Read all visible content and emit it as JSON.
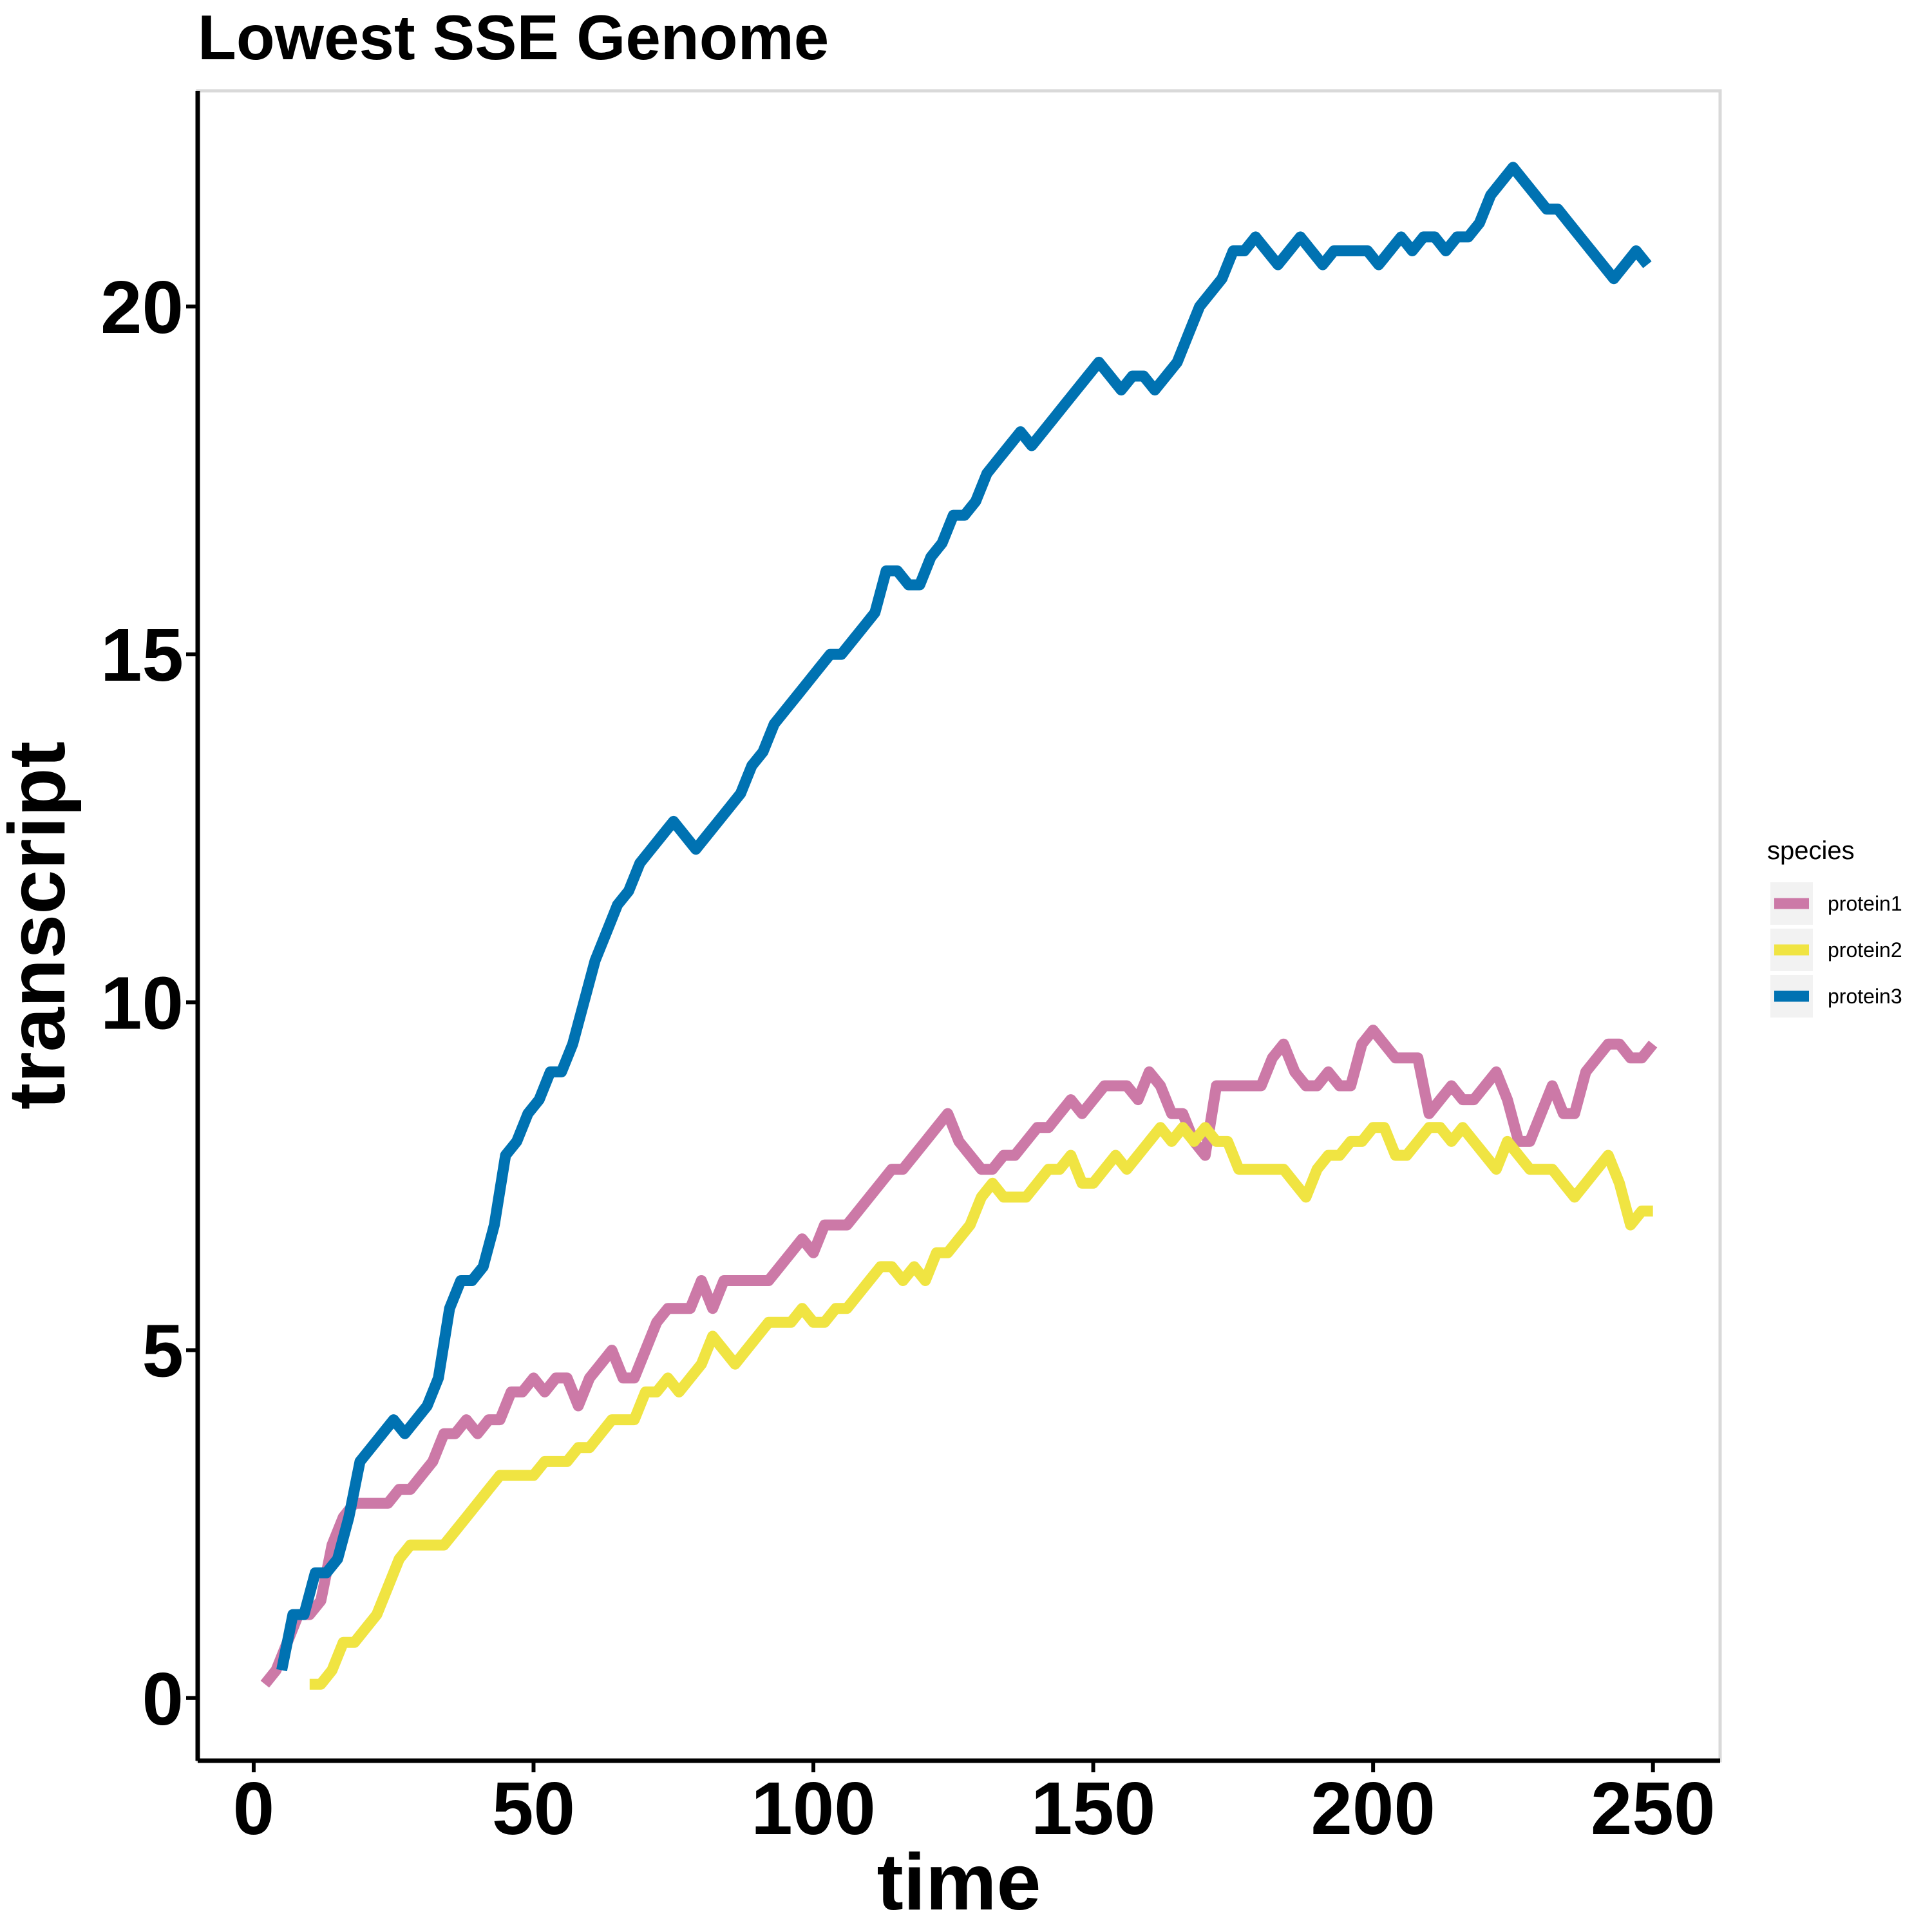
{
  "chart_data": {
    "type": "line",
    "title": "Lowest SSE Genome",
    "xlabel": "time",
    "ylabel": "transcript",
    "xlim": [
      -10,
      262
    ],
    "ylim": [
      -0.9,
      23.1
    ],
    "x_ticks": [
      0,
      50,
      100,
      150,
      200,
      250
    ],
    "x_tick_labels": [
      "0",
      "50",
      "100",
      "150",
      "200",
      "250"
    ],
    "y_ticks": [
      0,
      5,
      10,
      15,
      20
    ],
    "y_tick_labels": [
      "0",
      "5",
      "10",
      "15",
      "20"
    ],
    "grid": false,
    "legend": {
      "title": "species",
      "position": "right"
    },
    "series": [
      {
        "name": "protein1",
        "color": "#CC79A7",
        "x": [
          2,
          4,
          6,
          8,
          10,
          12,
          14,
          16,
          18,
          20,
          24,
          26,
          28,
          30,
          32,
          34,
          36,
          38,
          40,
          42,
          44,
          46,
          48,
          50,
          52,
          54,
          56,
          58,
          60,
          62,
          64,
          66,
          68,
          70,
          72,
          74,
          78,
          80,
          82,
          84,
          88,
          92,
          96,
          98,
          100,
          102,
          104,
          106,
          108,
          110,
          112,
          114,
          116,
          118,
          120,
          122,
          124,
          126,
          128,
          130,
          132,
          134,
          136,
          138,
          140,
          142,
          144,
          146,
          148,
          150,
          152,
          154,
          156,
          158,
          160,
          162,
          164,
          166,
          168,
          170,
          172,
          176,
          180,
          182,
          184,
          186,
          188,
          190,
          192,
          194,
          196,
          198,
          200,
          202,
          204,
          206,
          208,
          210,
          212,
          214,
          216,
          218,
          220,
          222,
          224,
          226,
          228,
          230,
          232,
          234,
          236,
          238,
          240,
          242,
          244,
          246,
          248,
          250
        ],
        "values": [
          0.2,
          0.4,
          0.8,
          1.2,
          1.2,
          1.4,
          2.2,
          2.6,
          2.8,
          2.8,
          2.8,
          3.0,
          3.0,
          3.2,
          3.4,
          3.8,
          3.8,
          4.0,
          3.8,
          4.0,
          4.0,
          4.4,
          4.4,
          4.6,
          4.4,
          4.6,
          4.6,
          4.2,
          4.6,
          4.8,
          5.0,
          4.6,
          4.6,
          5.0,
          5.4,
          5.6,
          5.6,
          6.0,
          5.6,
          6.0,
          6.0,
          6.0,
          6.4,
          6.6,
          6.4,
          6.8,
          6.8,
          6.8,
          7.0,
          7.2,
          7.4,
          7.6,
          7.6,
          7.8,
          8.0,
          8.2,
          8.4,
          8.0,
          7.8,
          7.6,
          7.6,
          7.8,
          7.8,
          8.0,
          8.2,
          8.2,
          8.4,
          8.6,
          8.4,
          8.6,
          8.8,
          8.8,
          8.8,
          8.6,
          9.0,
          8.8,
          8.4,
          8.4,
          8.0,
          7.8,
          8.8,
          8.8,
          8.8,
          9.2,
          9.4,
          9.0,
          8.8,
          8.8,
          9.0,
          8.8,
          8.8,
          9.4,
          9.6,
          9.4,
          9.2,
          9.2,
          9.2,
          8.4,
          8.6,
          8.8,
          8.6,
          8.6,
          8.8,
          9.0,
          8.6,
          8.0,
          8.0,
          8.4,
          8.8,
          8.4,
          8.4,
          9.0,
          9.2,
          9.4,
          9.4,
          9.2,
          9.2,
          9.4
        ]
      },
      {
        "name": "protein2",
        "color": "#F0E442",
        "x": [
          10,
          12,
          14,
          16,
          18,
          20,
          22,
          24,
          26,
          28,
          30,
          32,
          34,
          36,
          38,
          40,
          42,
          44,
          48,
          50,
          52,
          54,
          56,
          58,
          60,
          62,
          64,
          66,
          68,
          70,
          72,
          74,
          76,
          78,
          80,
          82,
          84,
          86,
          88,
          90,
          92,
          96,
          98,
          100,
          102,
          104,
          106,
          108,
          110,
          112,
          114,
          116,
          118,
          120,
          122,
          124,
          126,
          128,
          130,
          132,
          134,
          136,
          138,
          140,
          142,
          144,
          146,
          148,
          150,
          152,
          154,
          156,
          158,
          160,
          162,
          164,
          166,
          168,
          170,
          172,
          174,
          176,
          180,
          184,
          186,
          188,
          190,
          192,
          194,
          196,
          198,
          200,
          202,
          204,
          206,
          208,
          210,
          212,
          214,
          216,
          218,
          220,
          222,
          224,
          226,
          228,
          230,
          232,
          234,
          236,
          238,
          240,
          242,
          244,
          246,
          248,
          250
        ],
        "values": [
          0.2,
          0.2,
          0.4,
          0.8,
          0.8,
          1.0,
          1.2,
          1.6,
          2.0,
          2.2,
          2.2,
          2.2,
          2.2,
          2.4,
          2.6,
          2.8,
          3.0,
          3.2,
          3.2,
          3.2,
          3.4,
          3.4,
          3.4,
          3.6,
          3.6,
          3.8,
          4.0,
          4.0,
          4.0,
          4.4,
          4.4,
          4.6,
          4.4,
          4.6,
          4.8,
          5.2,
          5.0,
          4.8,
          5.0,
          5.2,
          5.4,
          5.4,
          5.6,
          5.4,
          5.4,
          5.6,
          5.6,
          5.8,
          6.0,
          6.2,
          6.2,
          6.0,
          6.2,
          6.0,
          6.4,
          6.4,
          6.6,
          6.8,
          7.2,
          7.4,
          7.2,
          7.2,
          7.2,
          7.4,
          7.6,
          7.6,
          7.8,
          7.4,
          7.4,
          7.6,
          7.8,
          7.6,
          7.8,
          8.0,
          8.2,
          8.0,
          8.2,
          8.0,
          8.2,
          8.0,
          8.0,
          7.6,
          7.6,
          7.6,
          7.4,
          7.2,
          7.6,
          7.8,
          7.8,
          8.0,
          8.0,
          8.2,
          8.2,
          7.8,
          7.8,
          8.0,
          8.2,
          8.2,
          8.0,
          8.2,
          8.0,
          7.8,
          7.6,
          8.0,
          7.8,
          7.6,
          7.6,
          7.6,
          7.4,
          7.2,
          7.4,
          7.6,
          7.8,
          7.4,
          6.8,
          7.0,
          7.0
        ]
      },
      {
        "name": "protein3",
        "color": "#0072B2",
        "x": [
          5,
          7,
          9,
          11,
          13,
          15,
          17,
          19,
          21,
          23,
          25,
          27,
          29,
          31,
          33,
          35,
          37,
          39,
          41,
          43,
          45,
          47,
          49,
          51,
          53,
          55,
          57,
          59,
          61,
          63,
          65,
          67,
          69,
          71,
          73,
          75,
          77,
          79,
          81,
          83,
          85,
          87,
          89,
          91,
          93,
          95,
          97,
          99,
          101,
          103,
          105,
          107,
          109,
          111,
          113,
          115,
          117,
          119,
          121,
          123,
          125,
          127,
          129,
          131,
          133,
          135,
          137,
          139,
          141,
          143,
          145,
          147,
          149,
          151,
          153,
          155,
          157,
          159,
          161,
          163,
          165,
          167,
          169,
          171,
          173,
          175,
          177,
          179,
          181,
          183,
          185,
          187,
          189,
          191,
          193,
          195,
          197,
          199,
          201,
          203,
          205,
          207,
          209,
          211,
          213,
          215,
          217,
          219,
          221,
          223,
          225,
          227,
          229,
          231,
          233,
          235,
          237,
          239,
          241,
          243,
          245,
          247,
          249
        ],
        "values": [
          0.4,
          1.2,
          1.2,
          1.8,
          1.8,
          2.0,
          2.6,
          3.4,
          3.6,
          3.8,
          4.0,
          3.8,
          4.0,
          4.2,
          4.6,
          5.6,
          6.0,
          6.0,
          6.2,
          6.8,
          7.8,
          8.0,
          8.4,
          8.6,
          9.0,
          9.0,
          9.4,
          10.0,
          10.6,
          11.0,
          11.4,
          11.6,
          12.0,
          12.2,
          12.4,
          12.6,
          12.4,
          12.2,
          12.4,
          12.6,
          12.8,
          13.0,
          13.4,
          13.6,
          14.0,
          14.2,
          14.4,
          14.6,
          14.8,
          15.0,
          15.0,
          15.2,
          15.4,
          15.6,
          16.2,
          16.2,
          16.0,
          16.0,
          16.4,
          16.6,
          17.0,
          17.0,
          17.2,
          17.6,
          17.8,
          18.0,
          18.2,
          18.0,
          18.2,
          18.4,
          18.6,
          18.8,
          19.0,
          19.2,
          19.0,
          18.8,
          19.0,
          19.0,
          18.8,
          19.0,
          19.2,
          19.6,
          20.0,
          20.2,
          20.4,
          20.8,
          20.8,
          21.0,
          20.8,
          20.6,
          20.8,
          21.0,
          20.8,
          20.6,
          20.8,
          20.8,
          20.8,
          20.8,
          20.6,
          20.8,
          21.0,
          20.8,
          21.0,
          21.0,
          20.8,
          21.0,
          21.0,
          21.2,
          21.6,
          21.8,
          22.0,
          21.8,
          21.6,
          21.4,
          21.4,
          21.2,
          21.0,
          20.8,
          20.6,
          20.4,
          20.6,
          20.8,
          20.6
        ]
      }
    ]
  }
}
